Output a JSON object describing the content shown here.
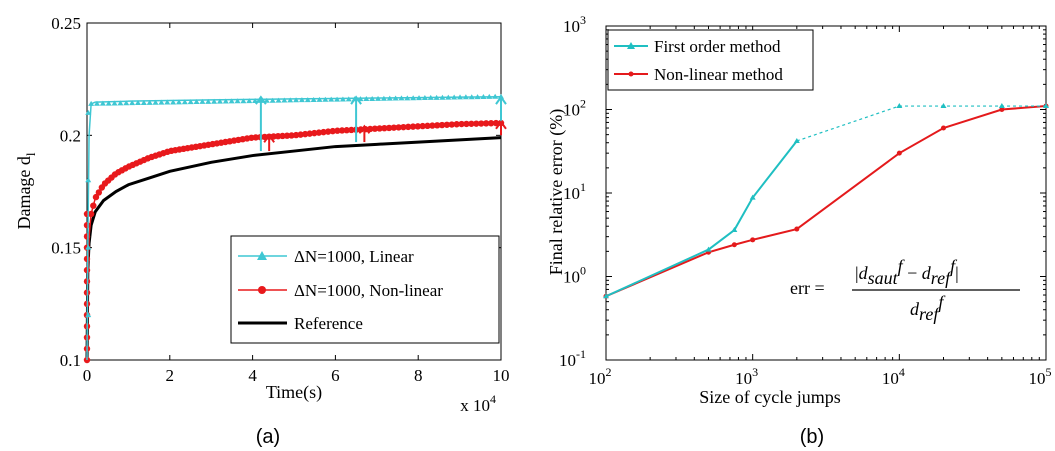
{
  "colors": {
    "linear": "#3fc7d3",
    "nonlinear": "#e8191c",
    "reference": "#000000",
    "first_order": "#1fbfc2",
    "nonlinear_method": "#e41a1c"
  },
  "captions": {
    "a": "(a)",
    "b": "(b)"
  },
  "formula": {
    "lhs": "err =",
    "numerator": "|d_saut^f − d_ref^f|",
    "denominator": "d_ref^f"
  },
  "chart_data": [
    {
      "type": "line",
      "xlabel": "Time(s)",
      "ylabel": "Damage d",
      "ylabel_subscript": "l",
      "x_multiplier_label": "x 10",
      "x_multiplier_exp": "4",
      "xlim": [
        0,
        10
      ],
      "ylim": [
        0.1,
        0.25
      ],
      "xticks": [
        "0",
        "2",
        "4",
        "6",
        "8",
        "10"
      ],
      "yticks": [
        "0.1",
        "0.15",
        "0.2",
        "0.25"
      ],
      "legend_position": "bottom-right",
      "legend": [
        "ΔN=1000, Linear",
        "ΔN=1000, Non-linear",
        "Reference"
      ],
      "series": [
        {
          "name": "ΔN=1000, Linear",
          "marker": "triangle",
          "x": [
            0,
            0.02,
            0.05,
            0.1,
            0.2,
            1,
            2,
            3,
            4,
            5,
            6,
            7,
            8,
            9,
            10
          ],
          "y": [
            0.1,
            0.15,
            0.2,
            0.214,
            0.2148,
            0.2152,
            0.2155,
            0.2158,
            0.216,
            0.2162,
            0.2164,
            0.2166,
            0.2168,
            0.217,
            0.2172
          ]
        },
        {
          "name": "ΔN=1000, Non-linear",
          "marker": "circle",
          "x": [
            0,
            0.02,
            0.05,
            0.1,
            0.2,
            0.4,
            0.7,
            1,
            1.5,
            2,
            3,
            4,
            5,
            6,
            7,
            8,
            9,
            10
          ],
          "y": [
            0.1,
            0.135,
            0.155,
            0.165,
            0.172,
            0.178,
            0.183,
            0.186,
            0.19,
            0.193,
            0.196,
            0.199,
            0.2,
            0.202,
            0.203,
            0.204,
            0.205,
            0.2055
          ]
        },
        {
          "name": "Reference",
          "marker": "none",
          "x": [
            0,
            0.02,
            0.05,
            0.1,
            0.2,
            0.4,
            0.7,
            1,
            1.5,
            2,
            3,
            4,
            5,
            6,
            7,
            8,
            9,
            10
          ],
          "y": [
            0.1,
            0.14,
            0.152,
            0.16,
            0.166,
            0.171,
            0.175,
            0.178,
            0.181,
            0.184,
            0.188,
            0.191,
            0.193,
            0.195,
            0.196,
            0.197,
            0.198,
            0.199
          ]
        }
      ],
      "annotations": [
        {
          "type": "arrow",
          "color": "linear",
          "x": 4.2,
          "y_from": 0.193,
          "y_to": 0.217
        },
        {
          "type": "arrow",
          "color": "linear",
          "x": 6.5,
          "y_from": 0.197,
          "y_to": 0.217
        },
        {
          "type": "arrow",
          "color": "linear",
          "x": 10,
          "y_from": 0.2,
          "y_to": 0.217
        },
        {
          "type": "arrow",
          "color": "nonlinear",
          "x": 4.4,
          "y_from": 0.193,
          "y_to": 0.2
        },
        {
          "type": "arrow",
          "color": "nonlinear",
          "x": 6.7,
          "y_from": 0.197,
          "y_to": 0.204
        },
        {
          "type": "arrow",
          "color": "nonlinear",
          "x": 10,
          "y_from": 0.2,
          "y_to": 0.206
        }
      ]
    },
    {
      "type": "line",
      "xscale": "log",
      "yscale": "log",
      "xlabel": "Size of cycle jumps",
      "ylabel": "Final relative error (%)",
      "xlim": [
        100,
        100000
      ],
      "ylim": [
        0.1,
        1000
      ],
      "xticks": [
        {
          "base": "10",
          "exp": "2"
        },
        {
          "base": "10",
          "exp": "3"
        },
        {
          "base": "10",
          "exp": "4"
        },
        {
          "base": "10",
          "exp": "5"
        }
      ],
      "yticks": [
        {
          "base": "10",
          "exp": "-1"
        },
        {
          "base": "10",
          "exp": "0"
        },
        {
          "base": "10",
          "exp": "1"
        },
        {
          "base": "10",
          "exp": "2"
        },
        {
          "base": "10",
          "exp": "3"
        }
      ],
      "legend_position": "top-left",
      "legend": [
        "First order method",
        "Non-linear method"
      ],
      "series": [
        {
          "name": "First order method",
          "marker": "triangle",
          "x": [
            100,
            500,
            750,
            1000,
            2000,
            10000,
            20000,
            50000,
            100000
          ],
          "y": [
            0.58,
            2.1,
            3.6,
            8.8,
            42,
            110,
            110,
            110,
            110
          ],
          "dashed_from_index": 4
        },
        {
          "name": "Non-linear method",
          "marker": "dot",
          "x": [
            100,
            500,
            750,
            1000,
            2000,
            10000,
            20000,
            50000,
            100000
          ],
          "y": [
            0.58,
            1.95,
            2.4,
            2.75,
            3.7,
            30,
            60,
            100,
            110
          ]
        }
      ]
    }
  ]
}
